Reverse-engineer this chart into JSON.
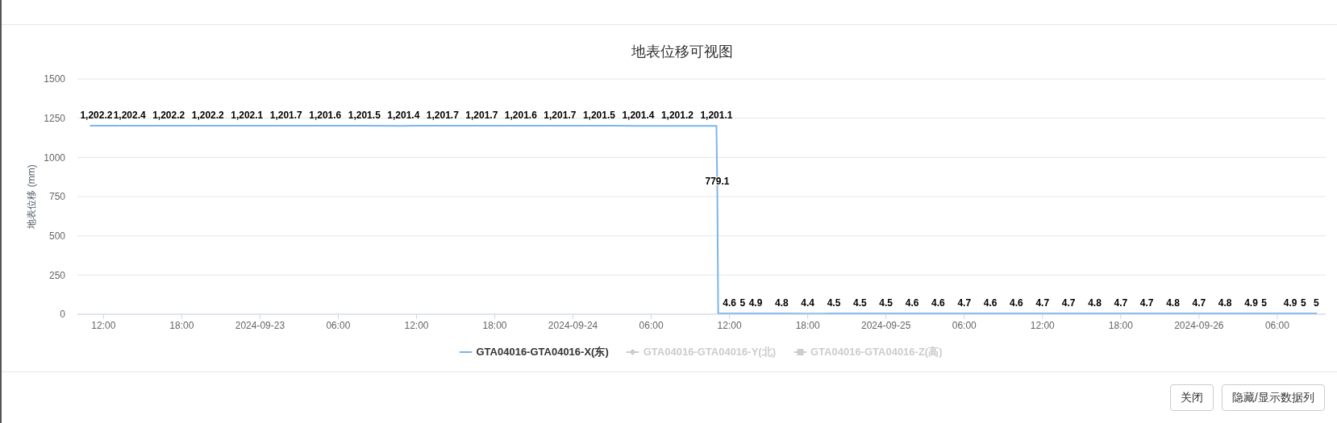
{
  "chart_data": {
    "type": "line",
    "title": "地表位移可视图",
    "ylabel": "地表位移 (mm)",
    "x": [
      "2024-09-22T11:00",
      "2024-09-22T14:00",
      "2024-09-22T17:00",
      "2024-09-22T20:00",
      "2024-09-22T23:00",
      "2024-09-23T02:00",
      "2024-09-23T05:00",
      "2024-09-23T08:00",
      "2024-09-23T11:00",
      "2024-09-23T14:00",
      "2024-09-23T17:00",
      "2024-09-23T20:00",
      "2024-09-23T23:00",
      "2024-09-24T02:00",
      "2024-09-24T05:00",
      "2024-09-24T08:00",
      "2024-09-24T11:00",
      "2024-09-24T11:04",
      "2024-09-24T11:08",
      "2024-09-24T12:00",
      "2024-09-24T13:00",
      "2024-09-24T14:00",
      "2024-09-24T16:00",
      "2024-09-24T18:00",
      "2024-09-24T20:00",
      "2024-09-24T22:00",
      "2024-09-25T00:00",
      "2024-09-25T02:00",
      "2024-09-25T04:00",
      "2024-09-25T06:00",
      "2024-09-25T08:00",
      "2024-09-25T10:00",
      "2024-09-25T12:00",
      "2024-09-25T14:00",
      "2024-09-25T16:00",
      "2024-09-25T18:00",
      "2024-09-25T20:00",
      "2024-09-25T22:00",
      "2024-09-26T00:00",
      "2024-09-26T02:00",
      "2024-09-26T04:00",
      "2024-09-26T05:00",
      "2024-09-26T07:00",
      "2024-09-26T08:00",
      "2024-09-26T09:00"
    ],
    "series": [
      {
        "name": "GTA04016-GTA04016-X(东)",
        "color": "#7cb5ec",
        "values": [
          1202.2,
          1202.4,
          1202.2,
          1202.2,
          1202.1,
          1201.7,
          1201.6,
          1201.5,
          1201.4,
          1201.7,
          1201.7,
          1201.6,
          1201.7,
          1201.5,
          1201.4,
          1201.2,
          1201.1,
          779.1,
          5,
          4.6,
          5,
          4.9,
          4.8,
          4.4,
          4.5,
          4.5,
          4.5,
          4.6,
          4.6,
          4.7,
          4.6,
          4.6,
          4.7,
          4.7,
          4.8,
          4.7,
          4.7,
          4.8,
          4.7,
          4.8,
          4.9,
          5,
          4.9,
          5,
          5
        ],
        "value_labels": [
          "1,202.2",
          "1,202.4",
          "1,202.2",
          "1,202.2",
          "1,202.1",
          "1,201.7",
          "1,201.6",
          "1,201.5",
          "1,201.4",
          "1,201.7",
          "1,201.7",
          "1,201.6",
          "1,201.7",
          "1,201.5",
          "1,201.4",
          "1,201.2",
          "1,201.1",
          "779.1",
          null,
          "4.6",
          "5",
          "4.9",
          "4.8",
          "4.4",
          "4.5",
          "4.5",
          "4.5",
          "4.6",
          "4.6",
          "4.7",
          "4.6",
          "4.6",
          "4.7",
          "4.7",
          "4.8",
          "4.7",
          "4.7",
          "4.8",
          "4.7",
          "4.8",
          "4.9",
          "5",
          "4.9",
          "5",
          "5"
        ]
      },
      {
        "name": "GTA04016-GTA04016-Y(北)",
        "color": "#cccccc",
        "marker": "diamond",
        "values": [
          null,
          null,
          null,
          null,
          null,
          null,
          null,
          null,
          null,
          null,
          null,
          null,
          null,
          null,
          null,
          null,
          null,
          null,
          null,
          null,
          null,
          null,
          null,
          null,
          null,
          null,
          null,
          null,
          null,
          null,
          null,
          null,
          null,
          null,
          null,
          null,
          null,
          null,
          null,
          null,
          null,
          null,
          null,
          null,
          null
        ]
      },
      {
        "name": "GTA04016-GTA04016-Z(高)",
        "color": "#cccccc",
        "marker": "square",
        "values": [
          null,
          null,
          null,
          null,
          null,
          null,
          null,
          null,
          null,
          null,
          null,
          null,
          null,
          null,
          null,
          null,
          null,
          null,
          null,
          null,
          null,
          null,
          null,
          null,
          null,
          null,
          null,
          null,
          null,
          null,
          null,
          null,
          null,
          null,
          null,
          null,
          null,
          null,
          null,
          null,
          null,
          null,
          null,
          null,
          null
        ]
      }
    ],
    "xlim": [
      "2024-09-22T10:00",
      "2024-09-26T09:43"
    ],
    "xticks": [
      {
        "value": "2024-09-22T12:00",
        "label": "12:00"
      },
      {
        "value": "2024-09-22T18:00",
        "label": "18:00"
      },
      {
        "value": "2024-09-23T00:00",
        "label": "2024-09-23"
      },
      {
        "value": "2024-09-23T06:00",
        "label": "06:00"
      },
      {
        "value": "2024-09-23T12:00",
        "label": "12:00"
      },
      {
        "value": "2024-09-23T18:00",
        "label": "18:00"
      },
      {
        "value": "2024-09-24T00:00",
        "label": "2024-09-24"
      },
      {
        "value": "2024-09-24T06:00",
        "label": "06:00"
      },
      {
        "value": "2024-09-24T12:00",
        "label": "12:00"
      },
      {
        "value": "2024-09-24T18:00",
        "label": "18:00"
      },
      {
        "value": "2024-09-25T00:00",
        "label": "2024-09-25"
      },
      {
        "value": "2024-09-25T06:00",
        "label": "06:00"
      },
      {
        "value": "2024-09-25T12:00",
        "label": "12:00"
      },
      {
        "value": "2024-09-25T18:00",
        "label": "18:00"
      },
      {
        "value": "2024-09-26T00:00",
        "label": "2024-09-26"
      },
      {
        "value": "2024-09-26T06:00",
        "label": "06:00"
      }
    ],
    "ylim": [
      0,
      1500
    ],
    "yticks": [
      0,
      250,
      500,
      750,
      1000,
      1250,
      1500
    ],
    "grid": "y",
    "legend": "bottom",
    "annotations": [
      "关闭",
      "隐藏/显示数据列"
    ]
  }
}
